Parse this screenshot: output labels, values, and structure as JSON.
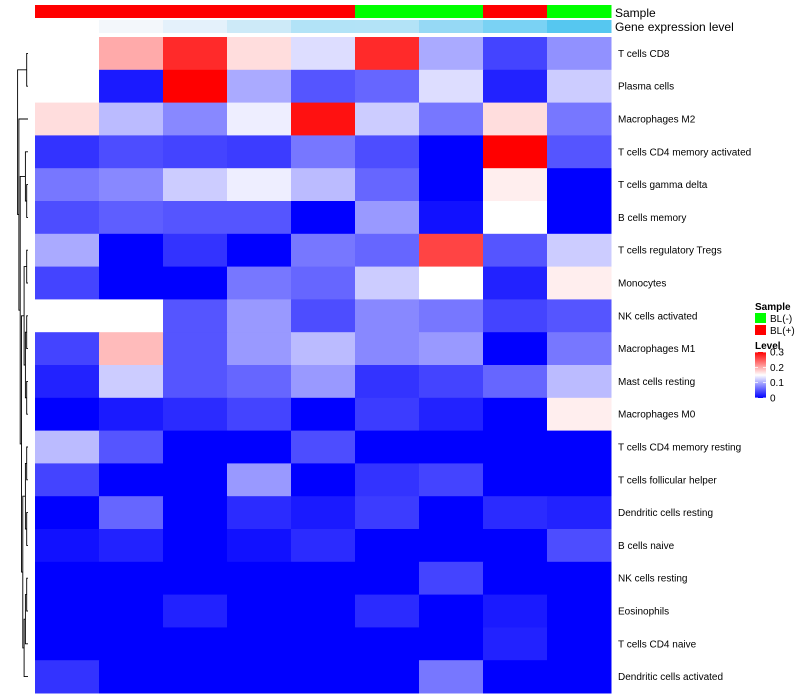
{
  "chart_data": {
    "type": "heatmap",
    "annotations": {
      "sample_title": "Sample",
      "gene_title": "Gene expression level",
      "sample_colors": [
        "#ff0000",
        "#ff0000",
        "#ff0000",
        "#ff0000",
        "#ff0000",
        "#00ff00",
        "#00ff00",
        "#ff0000",
        "#00ff00"
      ],
      "gene_colors": [
        "#ffffff",
        "#f3f7fb",
        "#e4f1fb",
        "#cdeaf8",
        "#b2e3f7",
        "#b3e3f7",
        "#96d9f5",
        "#7ad2f4",
        "#56c7f0"
      ]
    },
    "rows": [
      "T cells CD8",
      "Plasma cells",
      "Macrophages M2",
      "T cells CD4 memory activated",
      "T cells gamma delta",
      "B cells memory",
      "T cells regulatory  Tregs",
      "Monocytes",
      "NK cells activated",
      "Macrophages M1",
      "Mast cells resting",
      "Macrophages M0",
      "T cells CD4 memory resting",
      "T cells follicular helper",
      "Dendritic cells resting",
      "B cells naive",
      "NK cells resting",
      "Eosinophils",
      "T cells CD4 naive",
      "Dendritic cells activated"
    ],
    "values": [
      [
        0.15,
        0.2,
        0.275,
        0.17,
        0.13,
        0.275,
        0.1,
        0.04,
        0.085
      ],
      [
        0.15,
        0.015,
        0.3,
        0.1,
        0.05,
        0.06,
        0.13,
        0.02,
        0.12
      ],
      [
        0.17,
        0.11,
        0.08,
        0.14,
        0.29,
        0.12,
        0.07,
        0.17,
        0.07
      ],
      [
        0.03,
        0.045,
        0.04,
        0.035,
        0.07,
        0.045,
        0.0,
        0.3,
        0.05
      ],
      [
        0.07,
        0.08,
        0.12,
        0.14,
        0.11,
        0.06,
        0.0,
        0.16,
        0.0
      ],
      [
        0.045,
        0.055,
        0.05,
        0.05,
        0.0,
        0.09,
        0.01,
        0.15,
        0.0
      ],
      [
        0.1,
        0.0,
        0.03,
        0.0,
        0.07,
        0.06,
        0.26,
        0.05,
        0.12
      ],
      [
        0.04,
        0.0,
        0.0,
        0.07,
        0.06,
        0.12,
        0.15,
        0.02,
        0.16
      ],
      [
        0.15,
        0.15,
        0.05,
        0.09,
        0.045,
        0.08,
        0.07,
        0.04,
        0.05
      ],
      [
        0.04,
        0.19,
        0.05,
        0.09,
        0.11,
        0.08,
        0.09,
        0.0,
        0.07
      ],
      [
        0.02,
        0.12,
        0.05,
        0.06,
        0.09,
        0.03,
        0.04,
        0.06,
        0.11
      ],
      [
        0.0,
        0.015,
        0.025,
        0.04,
        0.0,
        0.035,
        0.02,
        0.0,
        0.16
      ],
      [
        0.11,
        0.05,
        0.0,
        0.0,
        0.045,
        0.0,
        0.0,
        0.0,
        0.0
      ],
      [
        0.04,
        0.0,
        0.0,
        0.09,
        0.0,
        0.03,
        0.04,
        0.0,
        0.0
      ],
      [
        0.0,
        0.06,
        0.0,
        0.025,
        0.015,
        0.035,
        0.0,
        0.025,
        0.02
      ],
      [
        0.01,
        0.02,
        0.0,
        0.01,
        0.025,
        0.0,
        0.0,
        0.0,
        0.045
      ],
      [
        0.0,
        0.0,
        0.0,
        0.0,
        0.0,
        0.0,
        0.04,
        0.0,
        0.0
      ],
      [
        0.0,
        0.0,
        0.02,
        0.0,
        0.0,
        0.025,
        0.0,
        0.015,
        0.0
      ],
      [
        0.0,
        0.0,
        0.0,
        0.0,
        0.0,
        0.0,
        0.0,
        0.02,
        0.0
      ],
      [
        0.03,
        0.0,
        0.0,
        0.0,
        0.0,
        0.0,
        0.07,
        0.0,
        0.0
      ]
    ],
    "color_scale": {
      "low": "#0000ff",
      "mid": "#ffffff",
      "high": "#ff0000",
      "min": 0,
      "mid_value": 0.15,
      "max": 0.3
    },
    "legend": {
      "sample_title": "Sample",
      "sample_items": [
        {
          "label": "BL(-)",
          "color": "#00ff00"
        },
        {
          "label": "BL(+)",
          "color": "#ff0000"
        }
      ],
      "level_title": "Level",
      "level_ticks": [
        {
          "value": 0.3,
          "label": "0.3"
        },
        {
          "value": 0.2,
          "label": "0.2"
        },
        {
          "value": 0.1,
          "label": "0.1"
        },
        {
          "value": 0,
          "label": "0"
        }
      ]
    },
    "dendrogram_merges": [
      [
        "T cells CD8",
        "Plasma cells"
      ],
      [
        "T cells gamma delta",
        "B cells memory"
      ],
      [
        "T cells CD4 memory activated",
        "T cells gamma delta|B cells memory"
      ],
      [
        "T cells regulatory  Tregs",
        "Monocytes"
      ],
      [
        "NK cells activated",
        "Macrophages M1"
      ],
      [
        "Mast cells resting",
        "Macrophages M0"
      ],
      [
        "NK cells activated|Macrophages M1",
        "Mast cells resting|Macrophages M0"
      ],
      [
        "T cells regulatory  Tregs|Monocytes",
        "NK cells activated|Macrophages M1|Mast cells resting|Macrophages M0"
      ],
      [
        "T cells CD4 memory resting",
        "T cells follicular helper"
      ],
      [
        "Dendritic cells resting",
        "B cells naive"
      ],
      [
        "T cells CD4 memory resting|T cells follicular helper",
        "Dendritic cells resting|B cells naive"
      ],
      [
        "NK cells resting",
        "Eosinophils"
      ],
      [
        "NK cells resting|Eosinophils",
        "T cells CD4 naive"
      ],
      [
        "NK cells resting|Eosinophils|T cells CD4 naive",
        "Dendritic cells activated"
      ],
      [
        "T cells CD4 memory resting|T cells follicular helper|Dendritic cells resting|B cells naive",
        "NK cells resting|Eosinophils|T cells CD4 naive|Dendritic cells activated"
      ],
      [
        "T cells regulatory  Tregs|Monocytes|NK cells activated|Macrophages M1|Mast cells resting|Macrophages M0",
        "T cells CD4 memory resting|T cells follicular helper|Dendritic cells resting|B cells naive|NK cells resting|Eosinophils|T cells CD4 naive|Dendritic cells activated"
      ],
      [
        "T cells CD4 memory activated|T cells gamma delta|B cells memory",
        "T cells regulatory  Tregs|Monocytes|NK cells activated|Macrophages M1|Mast cells resting|Macrophages M0|T cells CD4 memory resting|T cells follicular helper|Dendritic cells resting|B cells naive|NK cells resting|Eosinophils|T cells CD4 naive|Dendritic cells activated"
      ],
      [
        "Macrophages M2",
        "T cells CD4 memory activated|T cells gamma delta|B cells memory|T cells regulatory  Tregs|Monocytes|NK cells activated|Macrophages M1|Mast cells resting|Macrophages M0|T cells CD4 memory resting|T cells follicular helper|Dendritic cells resting|B cells naive|NK cells resting|Eosinophils|T cells CD4 naive|Dendritic cells activated"
      ],
      [
        "T cells CD8|Plasma cells",
        "Macrophages M2|T cells CD4 memory activated|T cells gamma delta|B cells memory|T cells regulatory  Tregs|Monocytes|NK cells activated|Macrophages M1|Mast cells resting|Macrophages M0|T cells CD4 memory resting|T cells follicular helper|Dendritic cells resting|B cells naive|NK cells resting|Eosinophils|T cells CD4 naive|Dendritic cells activated"
      ]
    ]
  }
}
